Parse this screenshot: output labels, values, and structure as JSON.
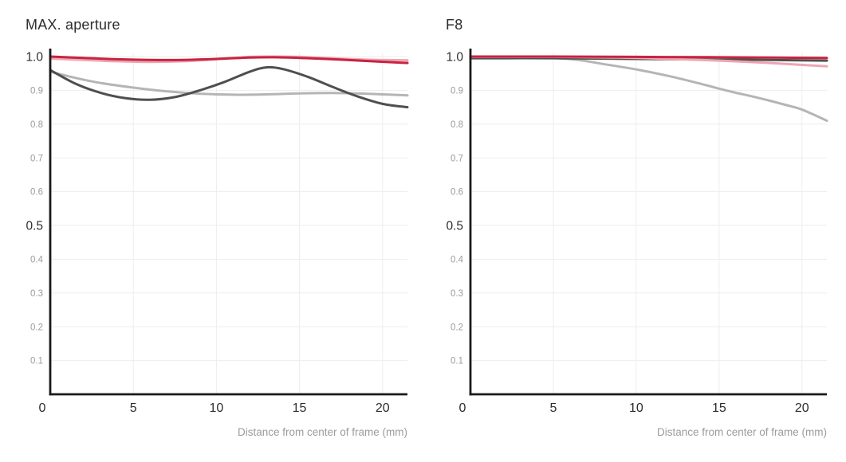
{
  "style": {
    "background": "#ffffff",
    "axis_color": "#1a1a1a",
    "grid_color": "#ededed",
    "major_tick_color": "#2d2d2d",
    "minor_tick_color": "#9b9b9b",
    "axis_title_color": "#9b9b9b",
    "title_color": "#2d2d2d"
  },
  "chart_data": [
    {
      "type": "line",
      "title": "MAX. aperture",
      "xlabel": "Distance from center of frame (mm)",
      "ylabel": "",
      "xlim": [
        0,
        21.5
      ],
      "ylim": [
        0,
        1.0
      ],
      "grid": true,
      "legend": "none",
      "x_ticks": [
        {
          "v": 0,
          "label": "0"
        },
        {
          "v": 5,
          "label": "5"
        },
        {
          "v": 10,
          "label": "10"
        },
        {
          "v": 15,
          "label": "15"
        },
        {
          "v": 20,
          "label": "20"
        }
      ],
      "y_ticks": [
        {
          "v": 0.1,
          "label": "0.1",
          "major": false
        },
        {
          "v": 0.2,
          "label": "0.2",
          "major": false
        },
        {
          "v": 0.3,
          "label": "0.3",
          "major": false
        },
        {
          "v": 0.4,
          "label": "0.4",
          "major": false
        },
        {
          "v": 0.5,
          "label": "0.5",
          "major": true
        },
        {
          "v": 0.6,
          "label": "0.6",
          "major": false
        },
        {
          "v": 0.7,
          "label": "0.7",
          "major": false
        },
        {
          "v": 0.8,
          "label": "0.8",
          "major": false
        },
        {
          "v": 0.9,
          "label": "0.9",
          "major": false
        },
        {
          "v": 1.0,
          "label": "1.0",
          "major": true
        }
      ],
      "y_zero_label": "0",
      "series": [
        {
          "name": "light-gray",
          "color": "#b5b5b5",
          "width": 3,
          "points": [
            [
              0,
              0.955
            ],
            [
              1.5,
              0.937
            ],
            [
              3,
              0.922
            ],
            [
              5,
              0.908
            ],
            [
              7,
              0.897
            ],
            [
              9,
              0.89
            ],
            [
              11,
              0.887
            ],
            [
              13,
              0.888
            ],
            [
              15,
              0.891
            ],
            [
              17,
              0.892
            ],
            [
              19,
              0.89
            ],
            [
              21.5,
              0.885
            ]
          ]
        },
        {
          "name": "dark-gray",
          "color": "#4f4f4f",
          "width": 3,
          "points": [
            [
              0,
              0.96
            ],
            [
              1.5,
              0.92
            ],
            [
              3,
              0.893
            ],
            [
              4.5,
              0.877
            ],
            [
              6,
              0.872
            ],
            [
              7.5,
              0.88
            ],
            [
              9,
              0.9
            ],
            [
              10.5,
              0.925
            ],
            [
              12,
              0.955
            ],
            [
              13,
              0.968
            ],
            [
              14,
              0.963
            ],
            [
              15.5,
              0.94
            ],
            [
              17,
              0.91
            ],
            [
              18.5,
              0.882
            ],
            [
              20,
              0.86
            ],
            [
              21.5,
              0.85
            ]
          ]
        },
        {
          "name": "pink",
          "color": "#eda6b4",
          "width": 3,
          "points": [
            [
              0,
              0.994
            ],
            [
              2,
              0.99
            ],
            [
              4,
              0.986
            ],
            [
              6,
              0.984
            ],
            [
              8,
              0.986
            ],
            [
              10,
              0.992
            ],
            [
              12,
              0.999
            ],
            [
              13.5,
              1.0
            ],
            [
              15,
              0.999
            ],
            [
              17,
              0.995
            ],
            [
              19,
              0.991
            ],
            [
              21.5,
              0.989
            ]
          ]
        },
        {
          "name": "red",
          "color": "#c82340",
          "width": 3,
          "points": [
            [
              0,
              1.0
            ],
            [
              2,
              0.996
            ],
            [
              4,
              0.992
            ],
            [
              6,
              0.99
            ],
            [
              8,
              0.99
            ],
            [
              10,
              0.993
            ],
            [
              12,
              0.997
            ],
            [
              13.5,
              0.998
            ],
            [
              15,
              0.996
            ],
            [
              17,
              0.992
            ],
            [
              19,
              0.987
            ],
            [
              21.5,
              0.981
            ]
          ]
        }
      ]
    },
    {
      "type": "line",
      "title": "F8",
      "xlabel": "Distance from center of frame (mm)",
      "ylabel": "",
      "xlim": [
        0,
        21.5
      ],
      "ylim": [
        0,
        1.0
      ],
      "grid": true,
      "legend": "none",
      "x_ticks": [
        {
          "v": 0,
          "label": "0"
        },
        {
          "v": 5,
          "label": "5"
        },
        {
          "v": 10,
          "label": "10"
        },
        {
          "v": 15,
          "label": "15"
        },
        {
          "v": 20,
          "label": "20"
        }
      ],
      "y_ticks": [
        {
          "v": 0.1,
          "label": "0.1",
          "major": false
        },
        {
          "v": 0.2,
          "label": "0.2",
          "major": false
        },
        {
          "v": 0.3,
          "label": "0.3",
          "major": false
        },
        {
          "v": 0.4,
          "label": "0.4",
          "major": false
        },
        {
          "v": 0.5,
          "label": "0.5",
          "major": true
        },
        {
          "v": 0.6,
          "label": "0.6",
          "major": false
        },
        {
          "v": 0.7,
          "label": "0.7",
          "major": false
        },
        {
          "v": 0.8,
          "label": "0.8",
          "major": false
        },
        {
          "v": 0.9,
          "label": "0.9",
          "major": false
        },
        {
          "v": 1.0,
          "label": "1.0",
          "major": true
        }
      ],
      "y_zero_label": "0",
      "series": [
        {
          "name": "light-gray",
          "color": "#b5b5b5",
          "width": 3,
          "points": [
            [
              0,
              0.997
            ],
            [
              3,
              0.997
            ],
            [
              5,
              0.996
            ],
            [
              6.5,
              0.99
            ],
            [
              8,
              0.978
            ],
            [
              10,
              0.962
            ],
            [
              12,
              0.942
            ],
            [
              14,
              0.918
            ],
            [
              15,
              0.905
            ],
            [
              16,
              0.893
            ],
            [
              17,
              0.882
            ],
            [
              18,
              0.87
            ],
            [
              19,
              0.857
            ],
            [
              20,
              0.843
            ],
            [
              21.5,
              0.81
            ]
          ]
        },
        {
          "name": "dark-gray",
          "color": "#4f4f4f",
          "width": 3,
          "points": [
            [
              0,
              0.995
            ],
            [
              5,
              0.995
            ],
            [
              10,
              0.993
            ],
            [
              15,
              0.991
            ],
            [
              18,
              0.99
            ],
            [
              21.5,
              0.988
            ]
          ]
        },
        {
          "name": "pink",
          "color": "#eda6b4",
          "width": 3,
          "points": [
            [
              0,
              0.999
            ],
            [
              5,
              0.999
            ],
            [
              9,
              0.997
            ],
            [
              12,
              0.993
            ],
            [
              15,
              0.988
            ],
            [
              18,
              0.981
            ],
            [
              21.5,
              0.971
            ]
          ]
        },
        {
          "name": "red",
          "color": "#c82340",
          "width": 3,
          "points": [
            [
              0,
              1.0
            ],
            [
              5,
              1.0
            ],
            [
              10,
              0.999
            ],
            [
              15,
              0.998
            ],
            [
              18,
              0.997
            ],
            [
              21.5,
              0.996
            ]
          ]
        }
      ]
    }
  ]
}
